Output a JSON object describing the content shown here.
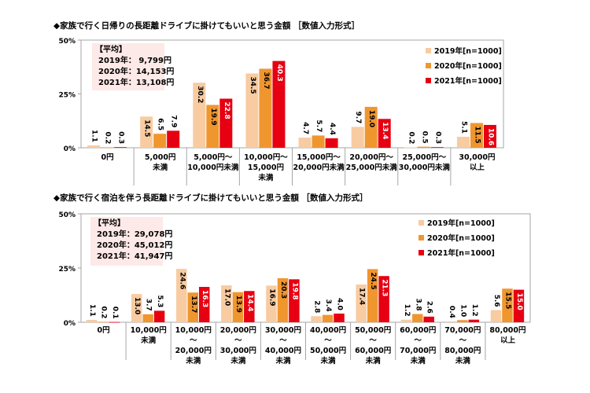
{
  "chart_data": [
    {
      "type": "bar",
      "title": "◆家族で行く日帰りの長距離ドライブに掛けてもいいと思う金額 ［数値入力形式］",
      "y_ticks": [
        "50%",
        "25%",
        "0%"
      ],
      "ylim": [
        0,
        50
      ],
      "categories": [
        [
          "0円"
        ],
        [
          "5,000円",
          "未満"
        ],
        [
          "5,000円～",
          "10,000円未満"
        ],
        [
          "10,000円～",
          "15,000円",
          "未満"
        ],
        [
          "15,000円～",
          "20,000円未満"
        ],
        [
          "20,000円～",
          "25,000円未満"
        ],
        [
          "25,000円～",
          "30,000円未満"
        ],
        [
          "30,000円",
          "以上"
        ]
      ],
      "series": [
        {
          "name": "2019年[n=1000]",
          "color": "#f8cba1",
          "values": [
            1.1,
            14.5,
            30.2,
            34.5,
            4.7,
            9.7,
            0.2,
            5.1
          ]
        },
        {
          "name": "2020年[n=1000]",
          "color": "#f0962f",
          "values": [
            0.2,
            6.5,
            19.9,
            36.7,
            5.7,
            19.0,
            0.5,
            11.5
          ]
        },
        {
          "name": "2021年[n=1000]",
          "color": "#e60012",
          "values": [
            0.3,
            7.9,
            22.8,
            40.3,
            4.4,
            13.4,
            0.3,
            10.6
          ]
        }
      ],
      "average_box": {
        "heading": "【平均】",
        "lines": [
          "2019年：  9,799円",
          "2020年：14,153円",
          "2021年：13,108円"
        ]
      }
    },
    {
      "type": "bar",
      "title": "◆家族で行く宿泊を伴う長距離ドライブに掛けてもいいと思う金額 ［数値入力形式］",
      "y_ticks": [
        "50%",
        "25%",
        "0%"
      ],
      "ylim": [
        0,
        50
      ],
      "categories": [
        [
          "0円"
        ],
        [
          "10,000円",
          "未満"
        ],
        [
          "10,000円",
          "～",
          "20,000円",
          "未満"
        ],
        [
          "20,000円",
          "～",
          "30,000円",
          "未満"
        ],
        [
          "30,000円",
          "～",
          "40,000円",
          "未満"
        ],
        [
          "40,000円",
          "～",
          "50,000円",
          "未満"
        ],
        [
          "50,000円",
          "～",
          "60,000円",
          "未満"
        ],
        [
          "60,000円",
          "～",
          "70,000円",
          "未満"
        ],
        [
          "70,000円",
          "～",
          "80,000円",
          "未満"
        ],
        [
          "80,000円",
          "以上"
        ]
      ],
      "series": [
        {
          "name": "2019年[n=1000]",
          "color": "#f8cba1",
          "values": [
            1.1,
            13.0,
            24.6,
            17.0,
            16.9,
            2.8,
            17.4,
            1.2,
            0.4,
            5.6
          ]
        },
        {
          "name": "2020年[n=1000]",
          "color": "#f0962f",
          "values": [
            0.2,
            3.7,
            13.7,
            13.9,
            20.3,
            3.4,
            24.5,
            3.8,
            1.0,
            15.5
          ]
        },
        {
          "name": "2021年[n=1000]",
          "color": "#e60012",
          "values": [
            0.1,
            5.3,
            16.3,
            14.4,
            19.8,
            4.0,
            21.3,
            2.6,
            1.2,
            15.0
          ]
        }
      ],
      "average_box": {
        "heading": "【平均】",
        "lines": [
          "2019年：29,078円",
          "2020年：45,012円",
          "2021年：41,947円"
        ]
      }
    }
  ]
}
